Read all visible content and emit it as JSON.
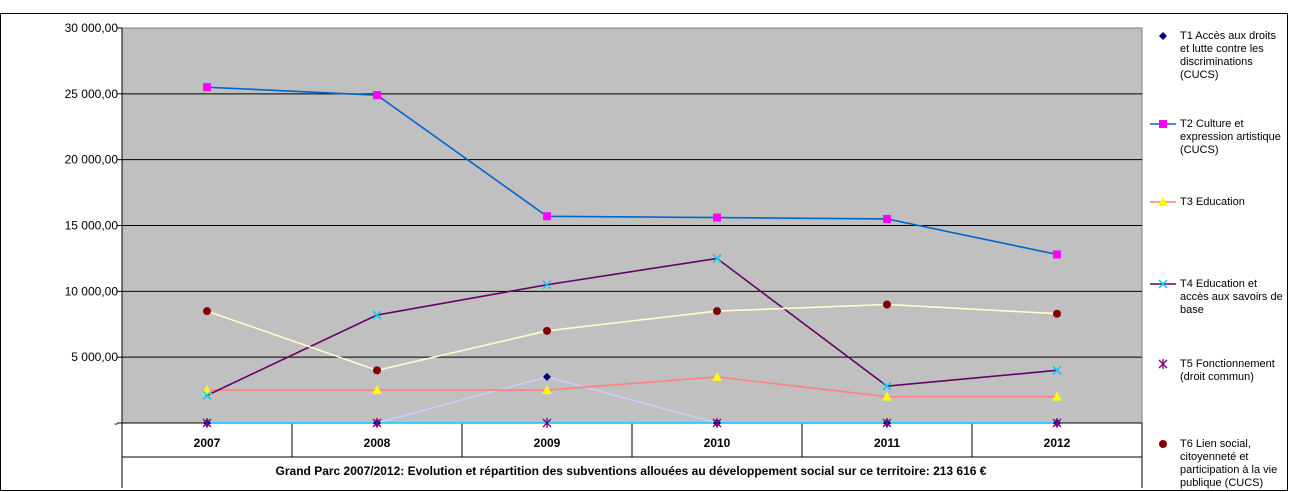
{
  "chart_data": {
    "type": "line",
    "categories": [
      "2007",
      "2008",
      "2009",
      "2010",
      "2011",
      "2012"
    ],
    "ylim": [
      0,
      30000
    ],
    "yticks": [
      "30 000,00",
      "25 000,00",
      "20 000,00",
      "15 000,00",
      "10 000,00",
      "5 000,00",
      "-"
    ],
    "grid": true,
    "legend_position": "right",
    "caption": "Grand Parc 2007/2012: Evolution et répartition des subventions allouées au développement social sur ce territoire: 213 616 €",
    "series": [
      {
        "name": "T1 Accès aux droits et lutte contre les discriminations (CUCS)",
        "marker": "diamond",
        "marker_color": "#000080",
        "line_color": "#ccccff",
        "values": [
          0,
          0,
          3500,
          0,
          0,
          0
        ]
      },
      {
        "name": "T2 Culture et expression artistique (CUCS)",
        "marker": "square",
        "marker_color": "#ff00ff",
        "line_color": "#0066cc",
        "values": [
          25500,
          24900,
          15700,
          15600,
          15500,
          12800
        ]
      },
      {
        "name": "T3 Education",
        "marker": "triangle",
        "marker_color": "#ffff00",
        "line_color": "#ff8080",
        "values": [
          2500,
          2500,
          2500,
          3500,
          2000,
          2000
        ]
      },
      {
        "name": "T4 Education et accès aux savoirs de base",
        "marker": "x",
        "marker_color": "#00ccff",
        "line_color": "#660066",
        "values": [
          2100,
          8200,
          10500,
          12500,
          2800,
          4000
        ]
      },
      {
        "name": "T5 Fonctionnement (droit commun)",
        "marker": "star",
        "marker_color": "#800080",
        "line_color": "#00ccff",
        "values": [
          0,
          0,
          0,
          0,
          0,
          0
        ]
      },
      {
        "name": "T6 Lien social, citoyenneté et participation à la vie publique (CUCS)",
        "marker": "circle",
        "marker_color": "#800000",
        "line_color": "#ffffcc",
        "values": [
          8500,
          4000,
          7000,
          8500,
          9000,
          8300
        ]
      }
    ]
  }
}
